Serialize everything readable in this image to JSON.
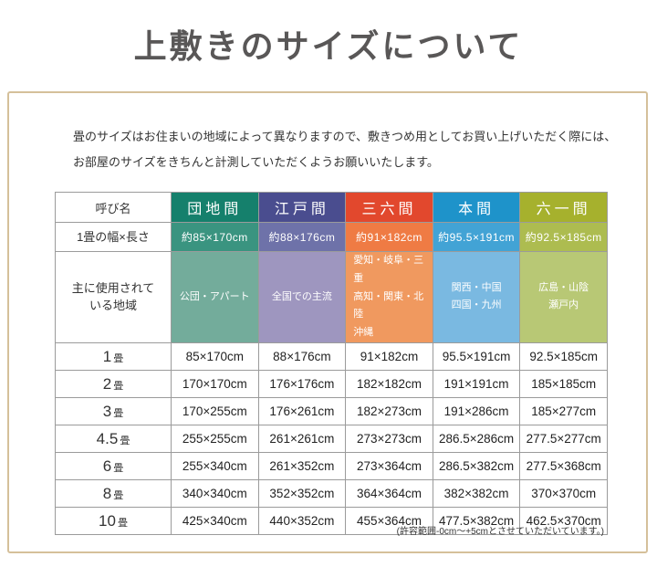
{
  "page": {
    "title": "上敷きのサイズについて",
    "box_border_color": "#d5c09a",
    "title_color": "#595757"
  },
  "intro": {
    "text": "畳のサイズはお住まいの地域によって異なりますので、敷きつめ用としてお買い上げいただく際には、\nお部屋のサイズをきちんと計測していただくようお願いいたします。"
  },
  "table": {
    "corner_header": "呼び名",
    "width_row_label": "1畳の幅×長さ",
    "region_row_label": "主に使用されて\nいる地域",
    "columns": [
      {
        "label": "団地間",
        "width": "約85×170cm",
        "region": "公団・アパート",
        "colors": {
          "header": "#15806c",
          "width": "#3a9480",
          "region": "#73ac9b"
        }
      },
      {
        "label": "江戸間",
        "width": "約88×176cm",
        "region": "全国での主流",
        "colors": {
          "header": "#4a4d8f",
          "width": "#6e72a9",
          "region": "#9e96bf"
        }
      },
      {
        "label": "三六間",
        "width": "約91×182cm",
        "region": "愛知・岐阜・三重\n高知・関東・北陸\n沖縄",
        "colors": {
          "header": "#e2482d",
          "width": "#ef7b44",
          "region": "#f0995f"
        }
      },
      {
        "label": "本間",
        "width": "約95.5×191cm",
        "region": "関西・中国\n四国・九州",
        "colors": {
          "header": "#1e93ca",
          "width": "#42a3d5",
          "region": "#7ab9e1"
        }
      },
      {
        "label": "六一間",
        "width": "約92.5×185cm",
        "region": "広島・山陰\n瀬戸内",
        "colors": {
          "header": "#a6b12d",
          "width": "#adbc50",
          "region": "#b8c875"
        }
      }
    ],
    "size_rows": [
      {
        "label_num": "1",
        "label_unit": "畳",
        "values": [
          "85×170cm",
          "88×176cm",
          "91×182cm",
          "95.5×191cm",
          "92.5×185cm"
        ]
      },
      {
        "label_num": "2",
        "label_unit": "畳",
        "values": [
          "170×170cm",
          "176×176cm",
          "182×182cm",
          "191×191cm",
          "185×185cm"
        ]
      },
      {
        "label_num": "3",
        "label_unit": "畳",
        "values": [
          "170×255cm",
          "176×261cm",
          "182×273cm",
          "191×286cm",
          "185×277cm"
        ]
      },
      {
        "label_num": "4.5",
        "label_unit": "畳",
        "values": [
          "255×255cm",
          "261×261cm",
          "273×273cm",
          "286.5×286cm",
          "277.5×277cm"
        ]
      },
      {
        "label_num": "6",
        "label_unit": "畳",
        "values": [
          "255×340cm",
          "261×352cm",
          "273×364cm",
          "286.5×382cm",
          "277.5×368cm"
        ]
      },
      {
        "label_num": "8",
        "label_unit": "畳",
        "values": [
          "340×340cm",
          "352×352cm",
          "364×364cm",
          "382×382cm",
          "370×370cm"
        ]
      },
      {
        "label_num": "10",
        "label_unit": "畳",
        "values": [
          "425×340cm",
          "440×352cm",
          "455×364cm",
          "477.5×382cm",
          "462.5×370cm"
        ]
      }
    ]
  },
  "footnote": {
    "text": "(許容範囲-0cm～+5cmとさせていただいています。)"
  }
}
